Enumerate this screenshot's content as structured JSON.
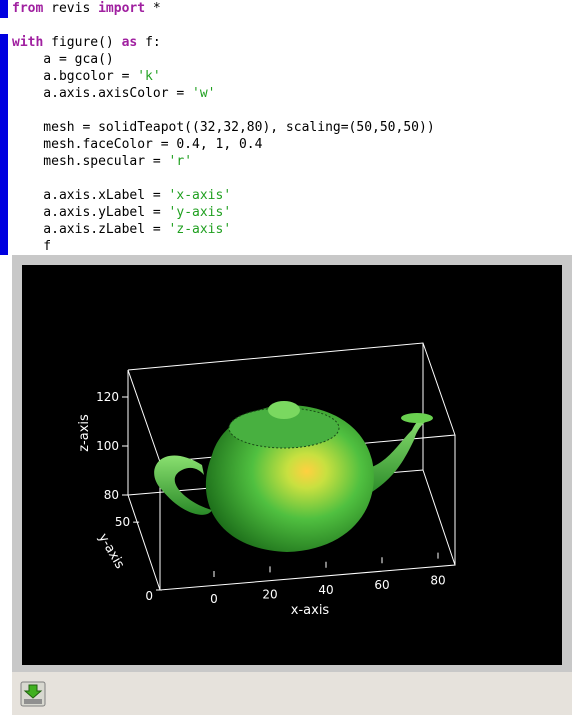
{
  "cells": [
    {
      "lines": [
        [
          {
            "t": "from",
            "c": "#a020a0",
            "b": true
          },
          {
            "t": " revis "
          },
          {
            "t": "import",
            "c": "#a020a0",
            "b": true
          },
          {
            "t": " *"
          }
        ]
      ]
    },
    {
      "lines": [
        [
          {
            "t": "with",
            "c": "#a020a0",
            "b": true
          },
          {
            "t": " figure() "
          },
          {
            "t": "as",
            "c": "#a020a0",
            "b": true
          },
          {
            "t": " f:"
          }
        ],
        [
          {
            "t": "    a = gca()"
          }
        ],
        [
          {
            "t": "    a.bgcolor = "
          },
          {
            "t": "'k'",
            "c": "#20a020"
          }
        ],
        [
          {
            "t": "    a.axis.axisColor = "
          },
          {
            "t": "'w'",
            "c": "#20a020"
          }
        ],
        [],
        [
          {
            "t": "    mesh = solidTeapot((32,32,80), scaling=(50,50,50))"
          }
        ],
        [
          {
            "t": "    mesh.faceColor = 0.4, 1, 0.4"
          }
        ],
        [
          {
            "t": "    mesh.specular = "
          },
          {
            "t": "'r'",
            "c": "#20a020"
          }
        ],
        [],
        [
          {
            "t": "    a.axis.xLabel = "
          },
          {
            "t": "'x-axis'",
            "c": "#20a020"
          }
        ],
        [
          {
            "t": "    a.axis.yLabel = "
          },
          {
            "t": "'y-axis'",
            "c": "#20a020"
          }
        ],
        [
          {
            "t": "    a.axis.zLabel = "
          },
          {
            "t": "'z-axis'",
            "c": "#20a020"
          }
        ],
        [
          {
            "t": "    f"
          }
        ]
      ]
    }
  ],
  "plot": {
    "xlabel": "x-axis",
    "ylabel": "y-axis",
    "zlabel": "z-axis",
    "xticks": [
      0,
      20,
      40,
      60,
      80
    ],
    "yticks": [
      0,
      50
    ],
    "zticks": [
      80,
      100,
      120
    ]
  }
}
